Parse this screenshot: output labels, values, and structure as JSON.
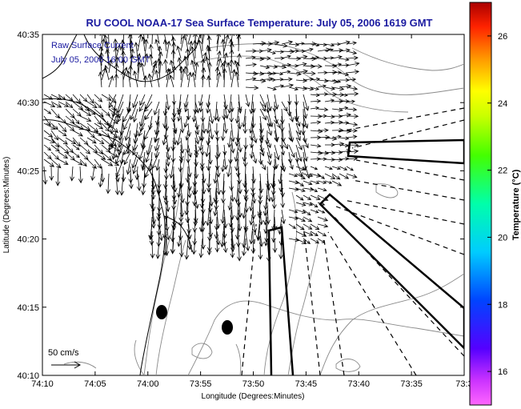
{
  "title": "RU COOL  NOAA-17  Sea Surface Temperature:  July 05, 2006 1619 GMT",
  "legend": {
    "line1": "Raw Surface Current",
    "line2": "July 05, 2006 16:00 GMT"
  },
  "scale_label": "50 cm/s",
  "axes": {
    "xlabel": "Longitude (Degrees:Minutes)",
    "ylabel": "Latitude (Degrees:Minutes)",
    "x_ticks": [
      "74:10",
      "74:05",
      "74:00",
      "73:55",
      "73:50",
      "73:45",
      "73:40",
      "73:35",
      "73:3"
    ],
    "y_ticks": [
      "40:35",
      "40:30",
      "40:25",
      "40:20",
      "40:15",
      "40:10"
    ]
  },
  "colorbar": {
    "label": "Temperature (°C)",
    "ticks": [
      "26",
      "24",
      "22",
      "20",
      "18",
      "16"
    ],
    "range": [
      15,
      27
    ]
  },
  "colors": {
    "title": "#1a1aa0",
    "coast": "#000000",
    "contour": "#888888"
  }
}
